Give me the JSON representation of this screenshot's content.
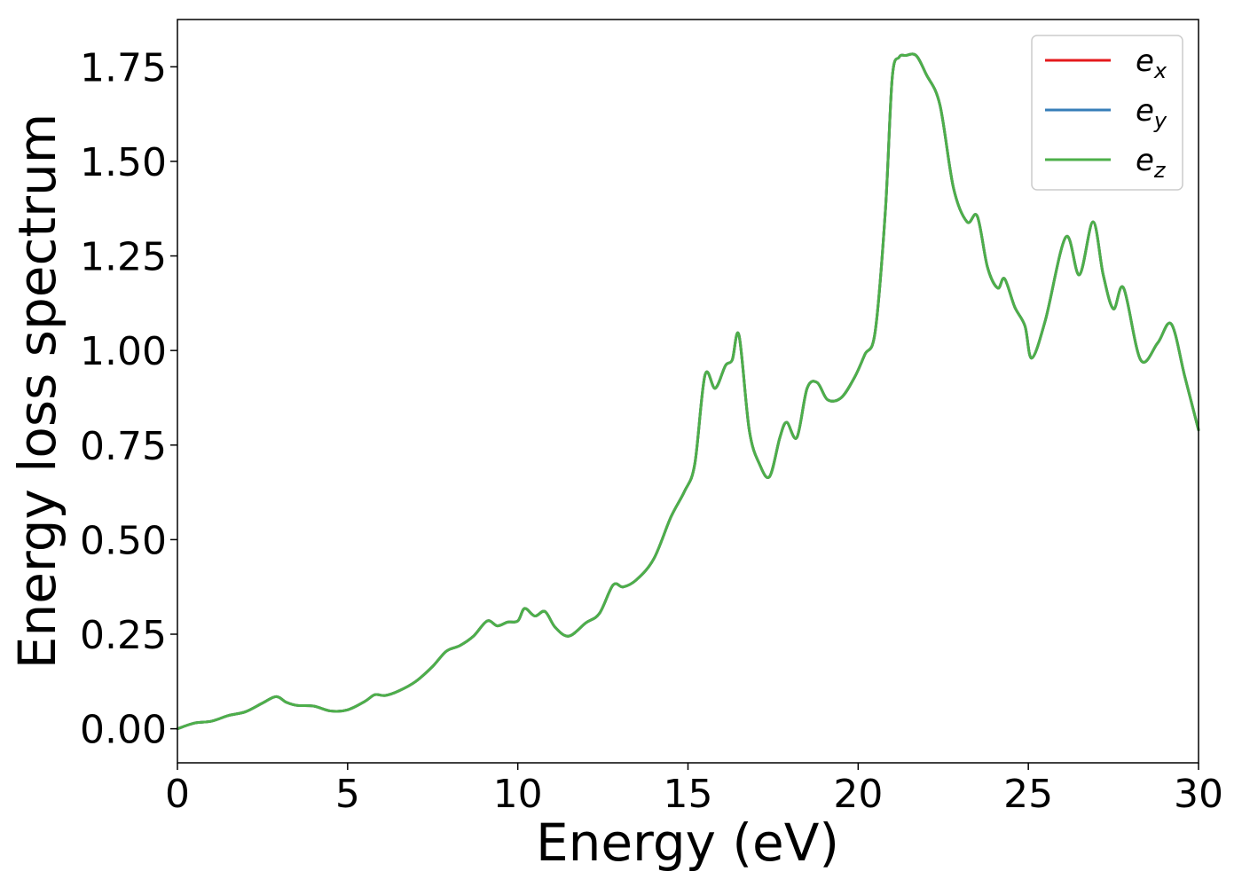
{
  "chart_data": {
    "type": "line",
    "xlabel": "Energy (eV)",
    "ylabel": "Energy loss spectrum",
    "xlim": [
      0,
      30
    ],
    "ylim": [
      -0.09,
      1.875
    ],
    "xticks": [
      0,
      5,
      10,
      15,
      20,
      25,
      30
    ],
    "xtick_labels": [
      "0",
      "5",
      "10",
      "15",
      "20",
      "25",
      "30"
    ],
    "yticks": [
      0,
      0.25,
      0.5,
      0.75,
      1.0,
      1.25,
      1.5,
      1.75
    ],
    "ytick_labels": [
      "0.00",
      "0.25",
      "0.50",
      "0.75",
      "1.00",
      "1.25",
      "1.50",
      "1.75"
    ],
    "grid": false,
    "legend_position": "top-right",
    "x": [
      0,
      0.5,
      1.0,
      1.5,
      2.0,
      2.5,
      2.9,
      3.2,
      3.5,
      4.0,
      4.5,
      5.0,
      5.5,
      5.8,
      6.1,
      6.5,
      7.0,
      7.5,
      7.9,
      8.3,
      8.7,
      9.1,
      9.4,
      9.7,
      10.0,
      10.2,
      10.5,
      10.8,
      11.1,
      11.5,
      12.0,
      12.4,
      12.8,
      13.1,
      13.5,
      14.0,
      14.5,
      14.9,
      15.2,
      15.5,
      15.8,
      16.1,
      16.3,
      16.5,
      16.8,
      17.1,
      17.4,
      17.7,
      17.9,
      18.2,
      18.5,
      18.8,
      19.1,
      19.5,
      19.9,
      20.2,
      20.5,
      20.8,
      21.0,
      21.2,
      21.4,
      21.7,
      22.0,
      22.4,
      22.8,
      23.2,
      23.5,
      23.8,
      24.1,
      24.3,
      24.6,
      24.9,
      25.1,
      25.5,
      26.1,
      26.5,
      26.9,
      27.2,
      27.5,
      27.8,
      28.3,
      28.8,
      29.2,
      29.6,
      30.0
    ],
    "series": [
      {
        "name": "e_x",
        "color": "#e41a1c",
        "values": [
          0.0,
          0.015,
          0.02,
          0.035,
          0.045,
          0.068,
          0.085,
          0.07,
          0.062,
          0.06,
          0.047,
          0.05,
          0.072,
          0.09,
          0.088,
          0.1,
          0.125,
          0.165,
          0.205,
          0.22,
          0.245,
          0.285,
          0.272,
          0.282,
          0.285,
          0.318,
          0.298,
          0.31,
          0.268,
          0.245,
          0.28,
          0.305,
          0.38,
          0.375,
          0.395,
          0.45,
          0.56,
          0.628,
          0.7,
          0.935,
          0.9,
          0.96,
          0.975,
          1.04,
          0.79,
          0.7,
          0.667,
          0.77,
          0.81,
          0.77,
          0.9,
          0.915,
          0.87,
          0.875,
          0.93,
          0.99,
          1.05,
          1.37,
          1.72,
          1.775,
          1.78,
          1.78,
          1.73,
          1.65,
          1.43,
          1.34,
          1.355,
          1.22,
          1.165,
          1.19,
          1.115,
          1.065,
          0.98,
          1.08,
          1.3,
          1.2,
          1.34,
          1.2,
          1.11,
          1.165,
          0.975,
          1.02,
          1.07,
          0.93,
          0.79
        ]
      },
      {
        "name": "e_y",
        "color": "#377eb8",
        "values": [
          0.0,
          0.015,
          0.02,
          0.035,
          0.045,
          0.068,
          0.085,
          0.07,
          0.062,
          0.06,
          0.047,
          0.05,
          0.072,
          0.09,
          0.088,
          0.1,
          0.125,
          0.165,
          0.205,
          0.22,
          0.245,
          0.285,
          0.272,
          0.282,
          0.285,
          0.318,
          0.298,
          0.31,
          0.268,
          0.245,
          0.28,
          0.305,
          0.38,
          0.375,
          0.395,
          0.45,
          0.56,
          0.628,
          0.7,
          0.935,
          0.9,
          0.96,
          0.975,
          1.04,
          0.79,
          0.7,
          0.667,
          0.77,
          0.81,
          0.77,
          0.9,
          0.915,
          0.87,
          0.875,
          0.93,
          0.99,
          1.05,
          1.37,
          1.72,
          1.775,
          1.78,
          1.78,
          1.73,
          1.65,
          1.43,
          1.34,
          1.355,
          1.22,
          1.165,
          1.19,
          1.115,
          1.065,
          0.98,
          1.08,
          1.3,
          1.2,
          1.34,
          1.2,
          1.11,
          1.165,
          0.975,
          1.02,
          1.07,
          0.93,
          0.79
        ]
      },
      {
        "name": "e_z",
        "color": "#4daf4a",
        "values": [
          0.0,
          0.015,
          0.02,
          0.035,
          0.045,
          0.068,
          0.085,
          0.07,
          0.062,
          0.06,
          0.047,
          0.05,
          0.072,
          0.09,
          0.088,
          0.1,
          0.125,
          0.165,
          0.205,
          0.22,
          0.245,
          0.285,
          0.272,
          0.282,
          0.285,
          0.318,
          0.298,
          0.31,
          0.268,
          0.245,
          0.28,
          0.305,
          0.38,
          0.375,
          0.395,
          0.45,
          0.56,
          0.628,
          0.7,
          0.935,
          0.9,
          0.96,
          0.975,
          1.04,
          0.79,
          0.7,
          0.667,
          0.77,
          0.81,
          0.77,
          0.9,
          0.915,
          0.87,
          0.875,
          0.93,
          0.99,
          1.05,
          1.37,
          1.72,
          1.775,
          1.78,
          1.78,
          1.73,
          1.65,
          1.43,
          1.34,
          1.355,
          1.22,
          1.165,
          1.19,
          1.115,
          1.065,
          0.98,
          1.08,
          1.3,
          1.2,
          1.34,
          1.2,
          1.11,
          1.165,
          0.975,
          1.02,
          1.07,
          0.93,
          0.79
        ]
      }
    ]
  }
}
